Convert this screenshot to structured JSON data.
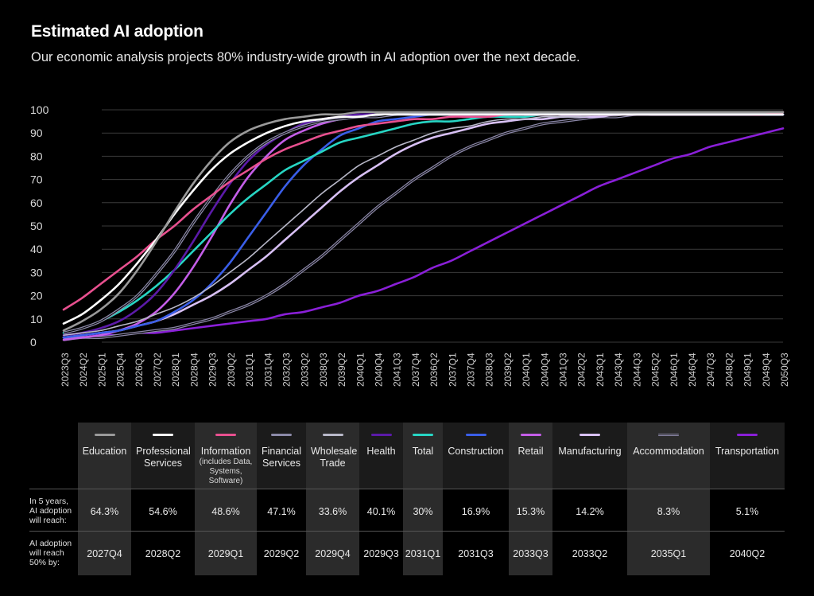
{
  "header": {
    "title": "Estimated AI adoption",
    "subtitle": "Our economic analysis projects 80% industry-wide growth in AI adoption over the next decade."
  },
  "chart_data": {
    "type": "line",
    "title": "Estimated AI adoption",
    "xlabel": "",
    "ylabel": "",
    "ylim": [
      0,
      100
    ],
    "yticks": [
      0,
      10,
      20,
      30,
      40,
      50,
      60,
      70,
      80,
      90,
      100
    ],
    "grid": true,
    "x": [
      "2023Q3",
      "2024Q2",
      "2025Q1",
      "2025Q4",
      "2026Q3",
      "2027Q2",
      "2028Q1",
      "2028Q4",
      "2029Q3",
      "2030Q2",
      "2031Q1",
      "2031Q4",
      "2032Q3",
      "2033Q2",
      "2038Q3",
      "2039Q2",
      "2040Q1",
      "2040Q4",
      "2041Q3",
      "2037Q4",
      "2036Q2",
      "2037Q1",
      "2037Q4",
      "2038Q3",
      "2039Q2",
      "2040Q1",
      "2040Q4",
      "2041Q3",
      "2042Q2",
      "2043Q1",
      "2043Q4",
      "2044Q3",
      "2045Q2",
      "2046Q1",
      "2046Q4",
      "2047Q3",
      "2048Q2",
      "2049Q1",
      "2049Q4",
      "2050Q3"
    ],
    "series": [
      {
        "name": "Education",
        "color": "#9a9a9a",
        "values": [
          5,
          9,
          14,
          21,
          31,
          43,
          56,
          68,
          78,
          86,
          91,
          94,
          96,
          97,
          98,
          98,
          99,
          99,
          99,
          99,
          99,
          99,
          99,
          99,
          99,
          99,
          99,
          99,
          99,
          99,
          99,
          99,
          99,
          99,
          99,
          99,
          99,
          99,
          99,
          99
        ]
      },
      {
        "name": "Professional Services",
        "color": "#ffffff",
        "values": [
          8,
          12,
          18,
          25,
          34,
          44,
          55,
          65,
          74,
          81,
          86,
          90,
          93,
          95,
          96,
          97,
          97,
          98,
          98,
          98,
          98,
          98,
          98,
          98,
          98,
          98,
          98,
          98,
          98,
          98,
          98,
          98,
          98,
          98,
          98,
          98,
          98,
          98,
          98,
          98
        ]
      },
      {
        "name": "Information",
        "color": "#e8508f",
        "values": [
          14,
          19,
          25,
          31,
          37,
          44,
          50,
          57,
          63,
          69,
          74,
          79,
          83,
          86,
          89,
          91,
          93,
          94,
          95,
          96,
          96,
          97,
          97,
          97,
          98,
          98,
          98,
          98,
          98,
          98,
          98,
          98,
          98,
          98,
          98,
          98,
          98,
          98,
          98,
          99
        ]
      },
      {
        "name": "Financial Services",
        "color": "#8c8aa8",
        "values": [
          4,
          6,
          9,
          14,
          20,
          29,
          39,
          51,
          62,
          72,
          80,
          86,
          90,
          93,
          95,
          96,
          97,
          97,
          98,
          98,
          98,
          98,
          98,
          98,
          98,
          98,
          98,
          98,
          98,
          98,
          98,
          98,
          98,
          98,
          98,
          98,
          98,
          98,
          98,
          98
        ]
      },
      {
        "name": "Wholesale Trade",
        "color": "#b8b8c8",
        "values": [
          3,
          4,
          5,
          7,
          9,
          12,
          15,
          19,
          24,
          30,
          36,
          43,
          50,
          57,
          64,
          70,
          76,
          80,
          84,
          87,
          90,
          92,
          93,
          95,
          96,
          96,
          97,
          97,
          97,
          98,
          98,
          98,
          98,
          98,
          98,
          98,
          98,
          98,
          98,
          98
        ]
      },
      {
        "name": "Health",
        "color": "#5b1aa8",
        "values": [
          3,
          4,
          6,
          9,
          14,
          21,
          31,
          43,
          56,
          68,
          78,
          85,
          90,
          94,
          96,
          97,
          98,
          98,
          98,
          98,
          98,
          98,
          98,
          98,
          98,
          98,
          98,
          98,
          98,
          98,
          98,
          98,
          98,
          98,
          98,
          98,
          98,
          98,
          98,
          98
        ]
      },
      {
        "name": "Total",
        "color": "#27d6c4",
        "values": [
          4,
          6,
          9,
          13,
          18,
          24,
          31,
          39,
          47,
          55,
          62,
          68,
          74,
          78,
          82,
          86,
          88,
          90,
          92,
          94,
          95,
          95,
          96,
          97,
          97,
          97,
          98,
          98,
          98,
          98,
          98,
          98,
          98,
          98,
          98,
          98,
          98,
          98,
          98,
          98
        ]
      },
      {
        "name": "Construction",
        "color": "#3a5ee8",
        "values": [
          2,
          3,
          4,
          5,
          7,
          9,
          13,
          18,
          25,
          34,
          45,
          56,
          67,
          76,
          83,
          89,
          92,
          95,
          96,
          97,
          98,
          98,
          98,
          98,
          98,
          98,
          98,
          98,
          98,
          98,
          98,
          98,
          98,
          98,
          98,
          98,
          98,
          98,
          98,
          98
        ]
      },
      {
        "name": "Retail",
        "color": "#c45ee8",
        "values": [
          1,
          2,
          3,
          5,
          8,
          13,
          21,
          32,
          45,
          59,
          71,
          80,
          87,
          91,
          94,
          96,
          97,
          98,
          98,
          98,
          98,
          98,
          98,
          98,
          98,
          98,
          98,
          98,
          98,
          98,
          98,
          98,
          98,
          98,
          98,
          98,
          98,
          98,
          98,
          98
        ]
      },
      {
        "name": "Manufacturing",
        "color": "#d8c0f5",
        "values": [
          2,
          3,
          4,
          5,
          7,
          9,
          12,
          16,
          20,
          25,
          31,
          37,
          44,
          51,
          58,
          65,
          71,
          76,
          81,
          85,
          88,
          90,
          92,
          94,
          95,
          96,
          96,
          97,
          97,
          97,
          98,
          98,
          98,
          98,
          98,
          98,
          98,
          98,
          98,
          98
        ]
      },
      {
        "name": "Accommodation",
        "color": "#8a86a6",
        "values": [
          1,
          2,
          2,
          3,
          4,
          5,
          6,
          8,
          10,
          13,
          16,
          20,
          25,
          31,
          37,
          44,
          51,
          58,
          64,
          70,
          75,
          80,
          84,
          87,
          90,
          92,
          94,
          95,
          96,
          97,
          97,
          98,
          98,
          98,
          98,
          98,
          98,
          98,
          98,
          98
        ]
      },
      {
        "name": "Transportation",
        "color": "#8a1fd8",
        "values": [
          2,
          2,
          3,
          3,
          4,
          4,
          5,
          6,
          7,
          8,
          9,
          10,
          12,
          13,
          15,
          17,
          20,
          22,
          25,
          28,
          32,
          35,
          39,
          43,
          47,
          51,
          55,
          59,
          63,
          67,
          70,
          73,
          76,
          79,
          81,
          84,
          86,
          88,
          90,
          92
        ]
      }
    ]
  },
  "table": {
    "row_labels": [
      [
        "In 5 years,",
        "AI adoption",
        "will reach:"
      ],
      [
        "AI adoption",
        "will reach",
        "50% by:"
      ]
    ],
    "columns": [
      {
        "name": "Education",
        "sub": "",
        "color": "#9a9a9a",
        "double": false,
        "five_year": "64.3%",
        "fifty_by": "2027Q4"
      },
      {
        "name": "Professional Services",
        "sub": "",
        "color": "#ffffff",
        "double": false,
        "five_year": "54.6%",
        "fifty_by": "2028Q2"
      },
      {
        "name": "Information",
        "sub": "(includes Data, Systems, Software)",
        "color": "#e8508f",
        "double": false,
        "five_year": "48.6%",
        "fifty_by": "2029Q1"
      },
      {
        "name": "Financial Services",
        "sub": "",
        "color": "#8c8aa8",
        "double": false,
        "five_year": "47.1%",
        "fifty_by": "2029Q2"
      },
      {
        "name": "Wholesale Trade",
        "sub": "",
        "color": "#b8b8c8",
        "double": false,
        "five_year": "33.6%",
        "fifty_by": "2029Q4"
      },
      {
        "name": "Health",
        "sub": "",
        "color": "#5b1aa8",
        "double": false,
        "five_year": "40.1%",
        "fifty_by": "2029Q3"
      },
      {
        "name": "Total",
        "sub": "",
        "color": "#27d6c4",
        "double": false,
        "five_year": "30%",
        "fifty_by": "2031Q1"
      },
      {
        "name": "Construction",
        "sub": "",
        "color": "#3a5ee8",
        "double": false,
        "five_year": "16.9%",
        "fifty_by": "2031Q3"
      },
      {
        "name": "Retail",
        "sub": "",
        "color": "#c45ee8",
        "double": false,
        "five_year": "15.3%",
        "fifty_by": "2033Q3"
      },
      {
        "name": "Manufacturing",
        "sub": "",
        "color": "#d8c0f5",
        "double": false,
        "five_year": "14.2%",
        "fifty_by": "2033Q2"
      },
      {
        "name": "Accommodation",
        "sub": "",
        "color": "#8a86a6",
        "double": true,
        "five_year": "8.3%",
        "fifty_by": "2035Q1"
      },
      {
        "name": "Transportation",
        "sub": "",
        "color": "#8a1fd8",
        "double": false,
        "five_year": "5.1%",
        "fifty_by": "2040Q2"
      }
    ]
  }
}
